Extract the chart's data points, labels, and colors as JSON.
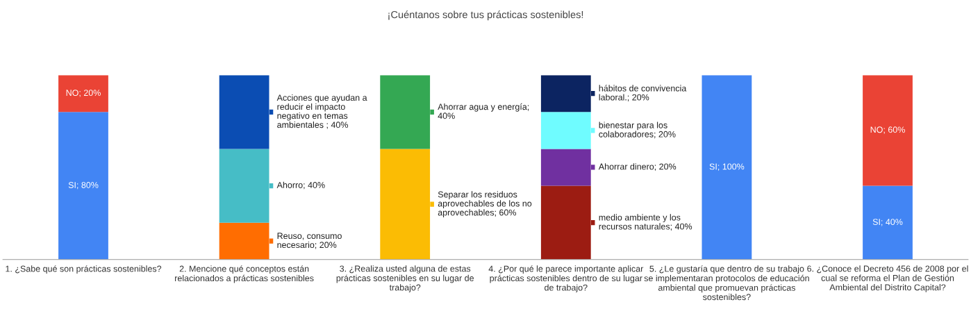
{
  "chart_data": {
    "type": "bar",
    "stacked": true,
    "title": "¡Cuéntanos sobre tus prácticas sostenibles!",
    "categories": [
      "1. ¿Sabe qué son prácticas sostenibles?",
      "2. Mencione qué conceptos están relacionados a prácticas sostenibles",
      "3. ¿Realiza usted alguna de estas prácticas sostenibles en su lugar de trabajo?",
      "4. ¿Por qué le parece importante aplicar prácticas sostenibles dentro de su lugar de trabajo?",
      "5. ¿Le gustaría que dentro de su trabajo se implementaran protocolos de educación ambiental que promuevan prácticas sostenibles?",
      "6. ¿Conoce el Decreto 456 de 2008 por el cual se reforma el Plan de Gestión Ambiental del Distrito Capital?"
    ],
    "series": [
      {
        "values": [
          80,
          20,
          60,
          40,
          100,
          40
        ],
        "colors": [
          "#4285f4",
          "#ff6d01",
          "#fbbc04",
          "#9c1c12",
          "#4285f4",
          "#4285f4"
        ],
        "value_labels": [
          "SI; 80%",
          null,
          null,
          null,
          "SI; 100%",
          "SI; 40%"
        ]
      },
      {
        "values": [
          20,
          40,
          40,
          20,
          null,
          60
        ],
        "colors": [
          "#ea4335",
          "#46bdc6",
          "#34a853",
          "#7030a0",
          null,
          "#ea4335"
        ],
        "value_labels": [
          "NO; 20%",
          null,
          null,
          null,
          null,
          "NO; 60%"
        ]
      },
      {
        "values": [
          null,
          40,
          null,
          20,
          null,
          null
        ],
        "colors": [
          null,
          "#0b4db3",
          null,
          "#6ffcff",
          null,
          null
        ]
      },
      {
        "values": [
          null,
          null,
          null,
          20,
          null,
          null
        ],
        "colors": [
          null,
          null,
          null,
          "#0c2461",
          null,
          null
        ]
      }
    ],
    "annotations": [
      "Reuso, consumo necesario; 20%",
      "Ahorro; 40%",
      "Acciones que ayudan a reducir el impacto negativo en temas ambientales ; 40%",
      "Separar los residuos aprovechables de los no aprovechables; 60%",
      "Ahorrar agua y energía; 40%",
      "medio ambiente y los recursos naturales; 40%",
      "Ahorrar dinero; 20%",
      "bienestar para los colaboradores; 20%",
      "hábitos de convivencia laboral.; 20%"
    ],
    "legend": false,
    "grid": false
  }
}
